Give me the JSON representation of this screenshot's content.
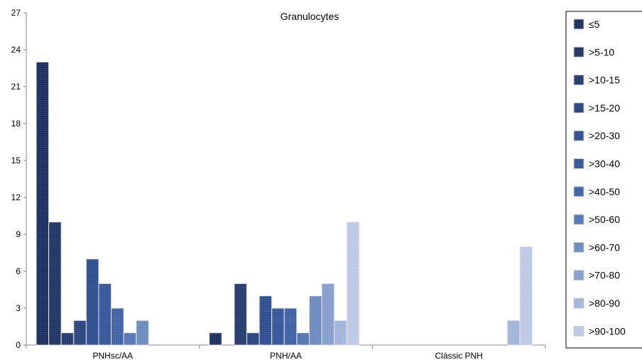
{
  "chart_data": {
    "type": "bar",
    "title": "Granulocytes",
    "xlabel": "",
    "ylabel": "",
    "ylim": [
      0,
      27
    ],
    "yticks": [
      "0",
      "3",
      "6",
      "9",
      "12",
      "15",
      "18",
      "21",
      "24",
      "27"
    ],
    "categories": [
      "PNHsc/AA",
      "PNH/AA",
      "Clássic PNH"
    ],
    "legend_position": "right",
    "series": [
      {
        "name": "≤5",
        "color": "#1f3160",
        "values": [
          23,
          1,
          0
        ]
      },
      {
        "name": ">5-10",
        "color": "#223766",
        "values": [
          10,
          0,
          0
        ]
      },
      {
        "name": ">10-15",
        "color": "#263d70",
        "values": [
          1,
          5,
          0
        ]
      },
      {
        "name": ">15-20",
        "color": "#2b4680",
        "values": [
          2,
          1,
          0
        ]
      },
      {
        "name": ">20-30",
        "color": "#30508f",
        "values": [
          7,
          4,
          0
        ]
      },
      {
        "name": ">30-40",
        "color": "#37599c",
        "values": [
          5,
          3,
          0
        ]
      },
      {
        "name": ">40-50",
        "color": "#4064a6",
        "values": [
          3,
          3,
          0
        ]
      },
      {
        "name": ">50-60",
        "color": "#5677b3",
        "values": [
          1,
          1,
          0
        ]
      },
      {
        "name": ">60-70",
        "color": "#6e8cc0",
        "values": [
          2,
          4,
          0
        ]
      },
      {
        "name": ">70-80",
        "color": "#879fcc",
        "values": [
          0,
          5,
          0
        ]
      },
      {
        "name": ">80-90",
        "color": "#a3b5d8",
        "values": [
          0,
          2,
          2
        ]
      },
      {
        "name": ">90-100",
        "color": "#bec9e3",
        "values": [
          0,
          10,
          8
        ]
      }
    ]
  }
}
